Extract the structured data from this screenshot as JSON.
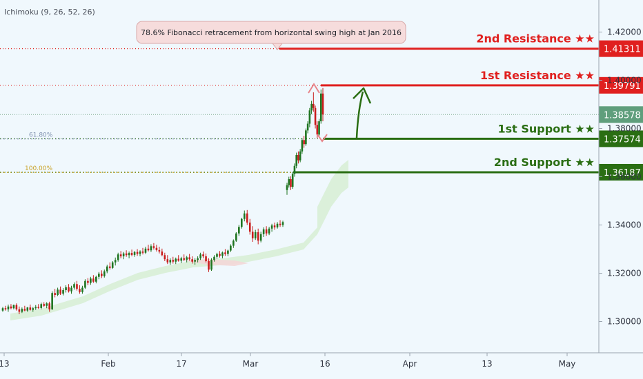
{
  "indicator": "Ichimoku (9, 26, 52, 26)",
  "note": "78.6% Fibonacci retracement from horizontal swing high at Jan 2016",
  "colors": {
    "background": "#f0f8fd",
    "resistance": "#e0201f",
    "support": "#2a6e13",
    "current_price": "#5f9e7c",
    "bull_candle": "#1e7420",
    "bear_candle": "#c91c1c",
    "fib_618": "#7d8fae",
    "fib_100": "#c9a227",
    "arrow": "#2a6e13",
    "reversal_arrow": "#e8858a"
  },
  "chart_data": {
    "type": "candlestick",
    "x_tick_labels": [
      "13",
      "Feb",
      "17",
      "Mar",
      "16",
      "Apr",
      "13",
      "May"
    ],
    "y_tick_labels": [
      "1.42000",
      "1.40000",
      "1.38000",
      "1.36000",
      "1.34000",
      "1.32000",
      "1.30000"
    ],
    "ylim": [
      1.2925,
      1.4272
    ],
    "levels": [
      {
        "name": "2nd Resistance",
        "label": "2nd Resistance ★★",
        "value": 1.41311,
        "tag": "1.41311",
        "kind": "resistance"
      },
      {
        "name": "1st Resistance",
        "label": "1st Resistance ★★",
        "value": 1.39791,
        "tag": "1.39791",
        "kind": "resistance"
      },
      {
        "name": "1st Support",
        "label": "1st Support ★★",
        "value": 1.37574,
        "tag": "1.37574",
        "kind": "support"
      },
      {
        "name": "2nd Support",
        "label": "2nd Support ★★",
        "value": 1.36187,
        "tag": "1.36187",
        "kind": "support"
      }
    ],
    "current_price": {
      "value": 1.38578,
      "tag": "1.38578"
    },
    "fibonacci": [
      {
        "label": "61.80%",
        "value": 1.3757
      },
      {
        "label": "100.00%",
        "value": 1.3618
      }
    ],
    "candles": [
      [
        1.3045,
        1.306,
        1.304,
        1.3055
      ],
      [
        1.3055,
        1.3065,
        1.3045,
        1.305
      ],
      [
        1.305,
        1.307,
        1.304,
        1.3062
      ],
      [
        1.3062,
        1.3072,
        1.305,
        1.3055
      ],
      [
        1.3055,
        1.307,
        1.305,
        1.3068
      ],
      [
        1.3068,
        1.3075,
        1.3045,
        1.305
      ],
      [
        1.305,
        1.3062,
        1.303,
        1.304
      ],
      [
        1.304,
        1.3058,
        1.3035,
        1.3052
      ],
      [
        1.3052,
        1.3065,
        1.3042,
        1.3045
      ],
      [
        1.3045,
        1.306,
        1.304,
        1.3058
      ],
      [
        1.3058,
        1.307,
        1.3045,
        1.3048
      ],
      [
        1.3048,
        1.306,
        1.304,
        1.3055
      ],
      [
        1.3055,
        1.3068,
        1.3048,
        1.306
      ],
      [
        1.306,
        1.3072,
        1.3052,
        1.3056
      ],
      [
        1.3056,
        1.3078,
        1.305,
        1.3072
      ],
      [
        1.3072,
        1.308,
        1.306,
        1.3065
      ],
      [
        1.3065,
        1.308,
        1.3055,
        1.3075
      ],
      [
        1.3075,
        1.3082,
        1.304,
        1.305
      ],
      [
        1.305,
        1.3125,
        1.3048,
        1.3118
      ],
      [
        1.3118,
        1.3135,
        1.31,
        1.311
      ],
      [
        1.311,
        1.314,
        1.3105,
        1.3132
      ],
      [
        1.3132,
        1.3145,
        1.311,
        1.3115
      ],
      [
        1.3115,
        1.3138,
        1.3108,
        1.313
      ],
      [
        1.313,
        1.315,
        1.312,
        1.3142
      ],
      [
        1.3142,
        1.3155,
        1.312,
        1.3125
      ],
      [
        1.3125,
        1.3148,
        1.3115,
        1.314
      ],
      [
        1.314,
        1.3162,
        1.3132,
        1.3155
      ],
      [
        1.3155,
        1.3168,
        1.3128,
        1.3135
      ],
      [
        1.3135,
        1.315,
        1.3115,
        1.3122
      ],
      [
        1.3122,
        1.3148,
        1.3115,
        1.314
      ],
      [
        1.314,
        1.3175,
        1.3135,
        1.3168
      ],
      [
        1.3168,
        1.318,
        1.315,
        1.316
      ],
      [
        1.316,
        1.3185,
        1.3152,
        1.3178
      ],
      [
        1.3178,
        1.3192,
        1.316,
        1.3165
      ],
      [
        1.3165,
        1.319,
        1.3158,
        1.3185
      ],
      [
        1.3185,
        1.3205,
        1.3175,
        1.3198
      ],
      [
        1.3198,
        1.3212,
        1.318,
        1.3188
      ],
      [
        1.3188,
        1.3215,
        1.3182,
        1.3208
      ],
      [
        1.3208,
        1.3235,
        1.32,
        1.3228
      ],
      [
        1.3228,
        1.3245,
        1.3215,
        1.3222
      ],
      [
        1.3222,
        1.325,
        1.3218,
        1.3245
      ],
      [
        1.3245,
        1.3265,
        1.3232,
        1.3255
      ],
      [
        1.3255,
        1.3285,
        1.3248,
        1.3278
      ],
      [
        1.3278,
        1.3292,
        1.3262,
        1.327
      ],
      [
        1.327,
        1.3288,
        1.3258,
        1.3282
      ],
      [
        1.3282,
        1.3295,
        1.3268,
        1.3275
      ],
      [
        1.3275,
        1.329,
        1.3262,
        1.3284
      ],
      [
        1.3284,
        1.3298,
        1.327,
        1.3276
      ],
      [
        1.3276,
        1.3292,
        1.3268,
        1.3288
      ],
      [
        1.3288,
        1.33,
        1.3272,
        1.328
      ],
      [
        1.328,
        1.3295,
        1.327,
        1.329
      ],
      [
        1.329,
        1.3305,
        1.3278,
        1.3285
      ],
      [
        1.3285,
        1.331,
        1.328,
        1.3302
      ],
      [
        1.3302,
        1.3318,
        1.329,
        1.3295
      ],
      [
        1.3295,
        1.332,
        1.3288,
        1.3312
      ],
      [
        1.3312,
        1.3325,
        1.3298,
        1.3305
      ],
      [
        1.3305,
        1.3318,
        1.329,
        1.3296
      ],
      [
        1.3296,
        1.331,
        1.3282,
        1.329
      ],
      [
        1.329,
        1.3302,
        1.327,
        1.3275
      ],
      [
        1.3275,
        1.3285,
        1.325,
        1.3258
      ],
      [
        1.3258,
        1.3275,
        1.3238,
        1.3245
      ],
      [
        1.3245,
        1.3262,
        1.3235,
        1.3255
      ],
      [
        1.3255,
        1.3268,
        1.324,
        1.3248
      ],
      [
        1.3248,
        1.3265,
        1.3238,
        1.326
      ],
      [
        1.326,
        1.3275,
        1.3248,
        1.3252
      ],
      [
        1.3252,
        1.3268,
        1.3242,
        1.3262
      ],
      [
        1.3262,
        1.3278,
        1.325,
        1.3256
      ],
      [
        1.3256,
        1.3272,
        1.3245,
        1.3266
      ],
      [
        1.3266,
        1.328,
        1.3252,
        1.3258
      ],
      [
        1.3258,
        1.327,
        1.324,
        1.3248
      ],
      [
        1.3248,
        1.3262,
        1.3235,
        1.3255
      ],
      [
        1.3255,
        1.327,
        1.3245,
        1.3262
      ],
      [
        1.3262,
        1.3285,
        1.3255,
        1.3278
      ],
      [
        1.3278,
        1.329,
        1.3262,
        1.327
      ],
      [
        1.327,
        1.3282,
        1.3245,
        1.325
      ],
      [
        1.325,
        1.3262,
        1.3205,
        1.3215
      ],
      [
        1.3215,
        1.3262,
        1.321,
        1.3255
      ],
      [
        1.3255,
        1.3275,
        1.3248,
        1.3268
      ],
      [
        1.3268,
        1.3285,
        1.326,
        1.328
      ],
      [
        1.328,
        1.3292,
        1.3265,
        1.3272
      ],
      [
        1.3272,
        1.329,
        1.3262,
        1.3286
      ],
      [
        1.3286,
        1.33,
        1.3272,
        1.328
      ],
      [
        1.328,
        1.3298,
        1.327,
        1.3294
      ],
      [
        1.3294,
        1.332,
        1.3288,
        1.3314
      ],
      [
        1.3314,
        1.334,
        1.3305,
        1.3335
      ],
      [
        1.3335,
        1.337,
        1.333,
        1.3365
      ],
      [
        1.3365,
        1.34,
        1.3355,
        1.3392
      ],
      [
        1.3392,
        1.343,
        1.3385,
        1.3425
      ],
      [
        1.3425,
        1.346,
        1.3415,
        1.3448
      ],
      [
        1.3448,
        1.3462,
        1.34,
        1.341
      ],
      [
        1.341,
        1.3425,
        1.336,
        1.3372
      ],
      [
        1.3372,
        1.3395,
        1.333,
        1.3345
      ],
      [
        1.3345,
        1.338,
        1.3338,
        1.337
      ],
      [
        1.337,
        1.3385,
        1.332,
        1.3335
      ],
      [
        1.3335,
        1.3372,
        1.3328,
        1.3362
      ],
      [
        1.3362,
        1.339,
        1.335,
        1.3382
      ],
      [
        1.3382,
        1.3395,
        1.3355,
        1.3365
      ],
      [
        1.3365,
        1.3392,
        1.3358,
        1.3385
      ],
      [
        1.3385,
        1.3405,
        1.3372,
        1.3398
      ],
      [
        1.3398,
        1.341,
        1.338,
        1.339
      ],
      [
        1.339,
        1.3412,
        1.3385,
        1.3405
      ],
      [
        1.3405,
        1.342,
        1.3392,
        1.34
      ],
      [
        1.34,
        1.3418,
        1.3392,
        1.3412
      ],
      [
        1.3545,
        1.3575,
        1.3525,
        1.3565
      ],
      [
        1.3565,
        1.36,
        1.3555,
        1.359
      ],
      [
        1.359,
        1.3602,
        1.3545,
        1.3558
      ],
      [
        1.3558,
        1.362,
        1.355,
        1.3612
      ],
      [
        1.3612,
        1.3655,
        1.36,
        1.3645
      ],
      [
        1.3645,
        1.37,
        1.3635,
        1.369
      ],
      [
        1.369,
        1.3705,
        1.3655,
        1.3668
      ],
      [
        1.3668,
        1.3715,
        1.366,
        1.3705
      ],
      [
        1.3705,
        1.376,
        1.3695,
        1.3752
      ],
      [
        1.3752,
        1.377,
        1.372,
        1.3735
      ],
      [
        1.3735,
        1.38,
        1.3728,
        1.3792
      ],
      [
        1.3792,
        1.383,
        1.378,
        1.382
      ],
      [
        1.382,
        1.3885,
        1.3805,
        1.3875
      ],
      [
        1.3875,
        1.3915,
        1.386,
        1.3902
      ],
      [
        1.3902,
        1.395,
        1.387,
        1.3885
      ],
      [
        1.3885,
        1.3895,
        1.38,
        1.3815
      ],
      [
        1.3815,
        1.383,
        1.376,
        1.3775
      ],
      [
        1.3775,
        1.384,
        1.3768,
        1.383
      ],
      [
        1.383,
        1.3962,
        1.382,
        1.3945
      ],
      [
        1.3945,
        1.3968,
        1.383,
        1.3858
      ]
    ]
  }
}
